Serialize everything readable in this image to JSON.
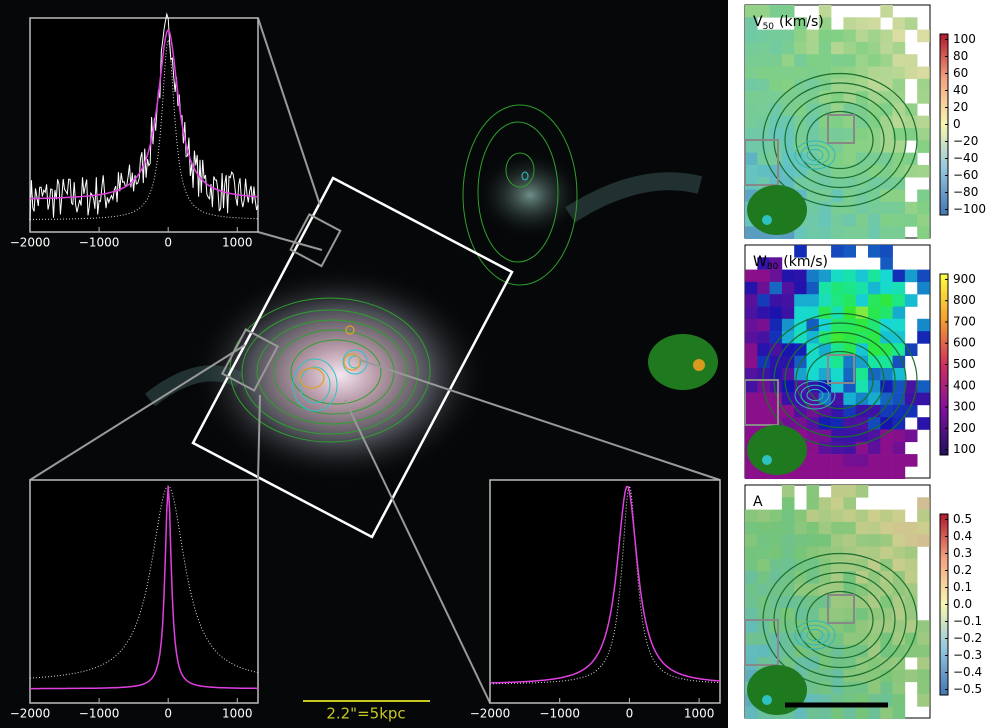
{
  "insets": [
    {
      "xticks": [
        "−2000",
        "−1000",
        "0",
        "1000"
      ]
    },
    {
      "xticks": [
        "−2000",
        "−1000",
        "0",
        "1000"
      ]
    },
    {
      "xticks": [
        "−2000",
        "−1000",
        "0",
        "1000"
      ]
    }
  ],
  "scale_bar": "2.2\"=5kpc",
  "panels": [
    {
      "label": "V",
      "subscript": "50",
      "unit": "(km/s)",
      "colorbar": [
        "100",
        "80",
        "60",
        "40",
        "20",
        "0",
        "−20",
        "−40",
        "−60",
        "−80",
        "−100"
      ]
    },
    {
      "label": "W",
      "subscript": "80",
      "unit": "(km/s)",
      "colorbar": [
        "900",
        "800",
        "700",
        "600",
        "500",
        "400",
        "300",
        "200",
        "100"
      ]
    },
    {
      "label": "A",
      "colorbar": [
        "0.5",
        "0.4",
        "0.3",
        "0.2",
        "0.1",
        "0.0",
        "−0.1",
        "−0.2",
        "−0.3",
        "−0.4",
        "−0.5"
      ]
    }
  ]
}
